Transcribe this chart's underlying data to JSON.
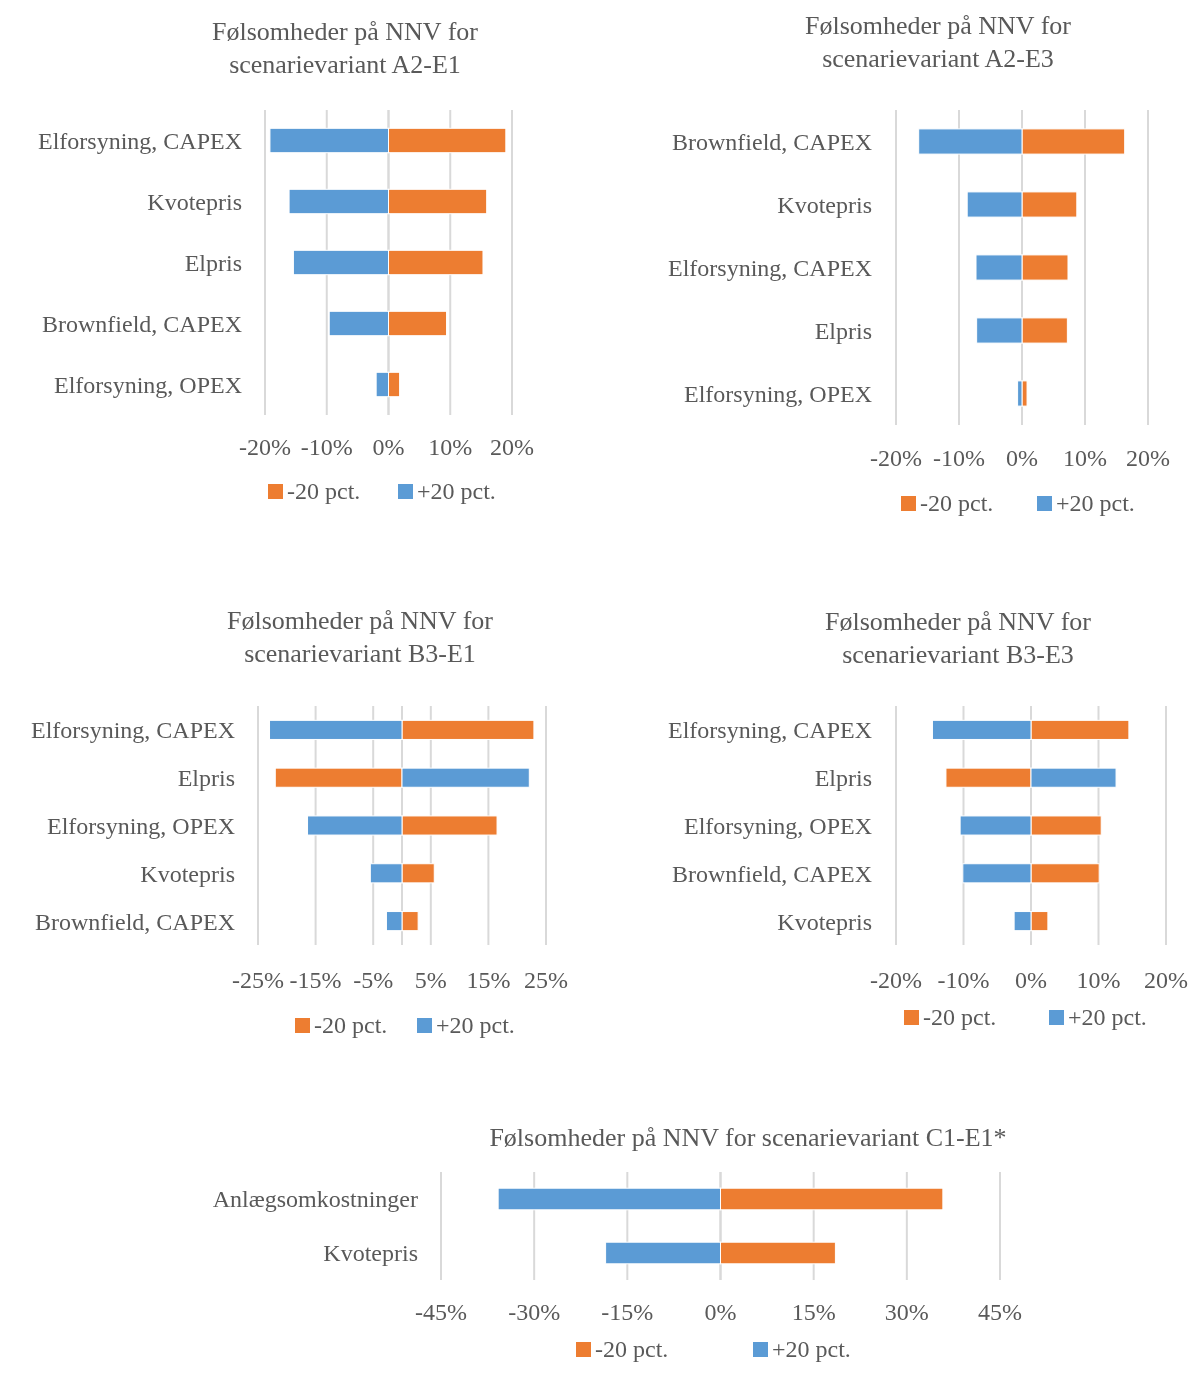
{
  "chart_data": [
    {
      "type": "bar",
      "orientation": "horizontal",
      "stacked": true,
      "title": "Følsomheder på NNV for scenarievariant A2-E1",
      "categories": [
        "Elforsyning, CAPEX",
        "Kvotepris",
        "Elpris",
        "Brownfield, CAPEX",
        "Elforsyning, OPEX"
      ],
      "series": [
        {
          "name": "-20 pct.",
          "color": "#ed7d31",
          "values": [
            19.0,
            15.9,
            15.3,
            9.4,
            1.8
          ]
        },
        {
          "name": "+20 pct.",
          "color": "#5b9bd5",
          "values": [
            -19.2,
            -16.1,
            -15.4,
            -9.6,
            -2.0
          ]
        }
      ],
      "xlim": [
        -20,
        20
      ],
      "xticks": [
        {
          "value": -20,
          "label": "-20%"
        },
        {
          "value": -10,
          "label": "-10%"
        },
        {
          "value": 0,
          "label": "0%"
        },
        {
          "value": 10,
          "label": "10%"
        },
        {
          "value": 20,
          "label": "20%"
        }
      ],
      "grid": "x",
      "legend": "bottom"
    },
    {
      "type": "bar",
      "orientation": "horizontal",
      "stacked": true,
      "title": "Følsomheder på NNV for scenarievariant A2-E3",
      "categories": [
        "Brownfield, CAPEX",
        "Kvotepris",
        "Elforsyning, CAPEX",
        "Elpris",
        "Elforsyning, OPEX"
      ],
      "series": [
        {
          "name": "-20 pct.",
          "color": "#ed7d31",
          "values": [
            16.3,
            8.7,
            7.3,
            7.2,
            0.8
          ]
        },
        {
          "name": "+20 pct.",
          "color": "#5b9bd5",
          "values": [
            -16.4,
            -8.7,
            -7.3,
            -7.2,
            -0.7
          ]
        }
      ],
      "xlim": [
        -20,
        20
      ],
      "xticks": [
        {
          "value": -20,
          "label": "-20%"
        },
        {
          "value": -10,
          "label": "-10%"
        },
        {
          "value": 0,
          "label": "0%"
        },
        {
          "value": 10,
          "label": "10%"
        },
        {
          "value": 20,
          "label": "20%"
        }
      ],
      "grid": "x",
      "legend": "bottom"
    },
    {
      "type": "bar",
      "orientation": "horizontal",
      "stacked": true,
      "title": "Følsomheder på NNV for scenarievariant B3-E1",
      "categories": [
        "Elforsyning, CAPEX",
        "Elpris",
        "Elforsyning, OPEX",
        "Kvotepris",
        "Brownfield, CAPEX"
      ],
      "series": [
        {
          "name": "-20 pct.",
          "color": "#ed7d31",
          "values": [
            22.9,
            -22.0,
            16.5,
            5.6,
            2.8
          ]
        },
        {
          "name": "+20 pct.",
          "color": "#5b9bd5",
          "values": [
            -23.0,
            22.1,
            -16.4,
            -5.5,
            -2.7
          ]
        }
      ],
      "xlim": [
        -25,
        25
      ],
      "xticks": [
        {
          "value": -25,
          "label": "-25%"
        },
        {
          "value": -15,
          "label": "-15%"
        },
        {
          "value": -5,
          "label": "-5%"
        },
        {
          "value": 5,
          "label": "5%"
        },
        {
          "value": 15,
          "label": "15%"
        },
        {
          "value": 25,
          "label": "25%"
        }
      ],
      "grid": "x",
      "legend": "bottom"
    },
    {
      "type": "bar",
      "orientation": "horizontal",
      "stacked": true,
      "title": "Følsomheder på NNV for scenarievariant B3-E3",
      "categories": [
        "Elforsyning, CAPEX",
        "Elpris",
        "Elforsyning, OPEX",
        "Brownfield, CAPEX",
        "Kvotepris"
      ],
      "series": [
        {
          "name": "-20 pct.",
          "color": "#ed7d31",
          "values": [
            14.5,
            -12.6,
            10.4,
            10.1,
            2.5
          ]
        },
        {
          "name": "+20 pct.",
          "color": "#5b9bd5",
          "values": [
            -14.6,
            12.6,
            -10.5,
            -10.1,
            -2.5
          ]
        }
      ],
      "xlim": [
        -20,
        20
      ],
      "xticks": [
        {
          "value": -20,
          "label": "-20%"
        },
        {
          "value": -10,
          "label": "-10%"
        },
        {
          "value": 0,
          "label": "0%"
        },
        {
          "value": 10,
          "label": "10%"
        },
        {
          "value": 20,
          "label": "20%"
        }
      ],
      "grid": "x",
      "legend": "bottom"
    },
    {
      "type": "bar",
      "orientation": "horizontal",
      "stacked": true,
      "title": "Følsomheder på NNV for scenarievariant C1-E1*",
      "categories": [
        "Anlægsomkostninger",
        "Kvotepris"
      ],
      "series": [
        {
          "name": "-20 pct.",
          "color": "#ed7d31",
          "values": [
            35.8,
            18.5
          ]
        },
        {
          "name": "+20 pct.",
          "color": "#5b9bd5",
          "values": [
            -35.8,
            -18.5
          ]
        }
      ],
      "xlim": [
        -45,
        45
      ],
      "xticks": [
        {
          "value": -45,
          "label": "-45%"
        },
        {
          "value": -30,
          "label": "-30%"
        },
        {
          "value": -15,
          "label": "-15%"
        },
        {
          "value": 0,
          "label": "0%"
        },
        {
          "value": 15,
          "label": "15%"
        },
        {
          "value": 30,
          "label": "30%"
        },
        {
          "value": 45,
          "label": "45%"
        }
      ],
      "grid": "x",
      "legend": "bottom"
    }
  ]
}
